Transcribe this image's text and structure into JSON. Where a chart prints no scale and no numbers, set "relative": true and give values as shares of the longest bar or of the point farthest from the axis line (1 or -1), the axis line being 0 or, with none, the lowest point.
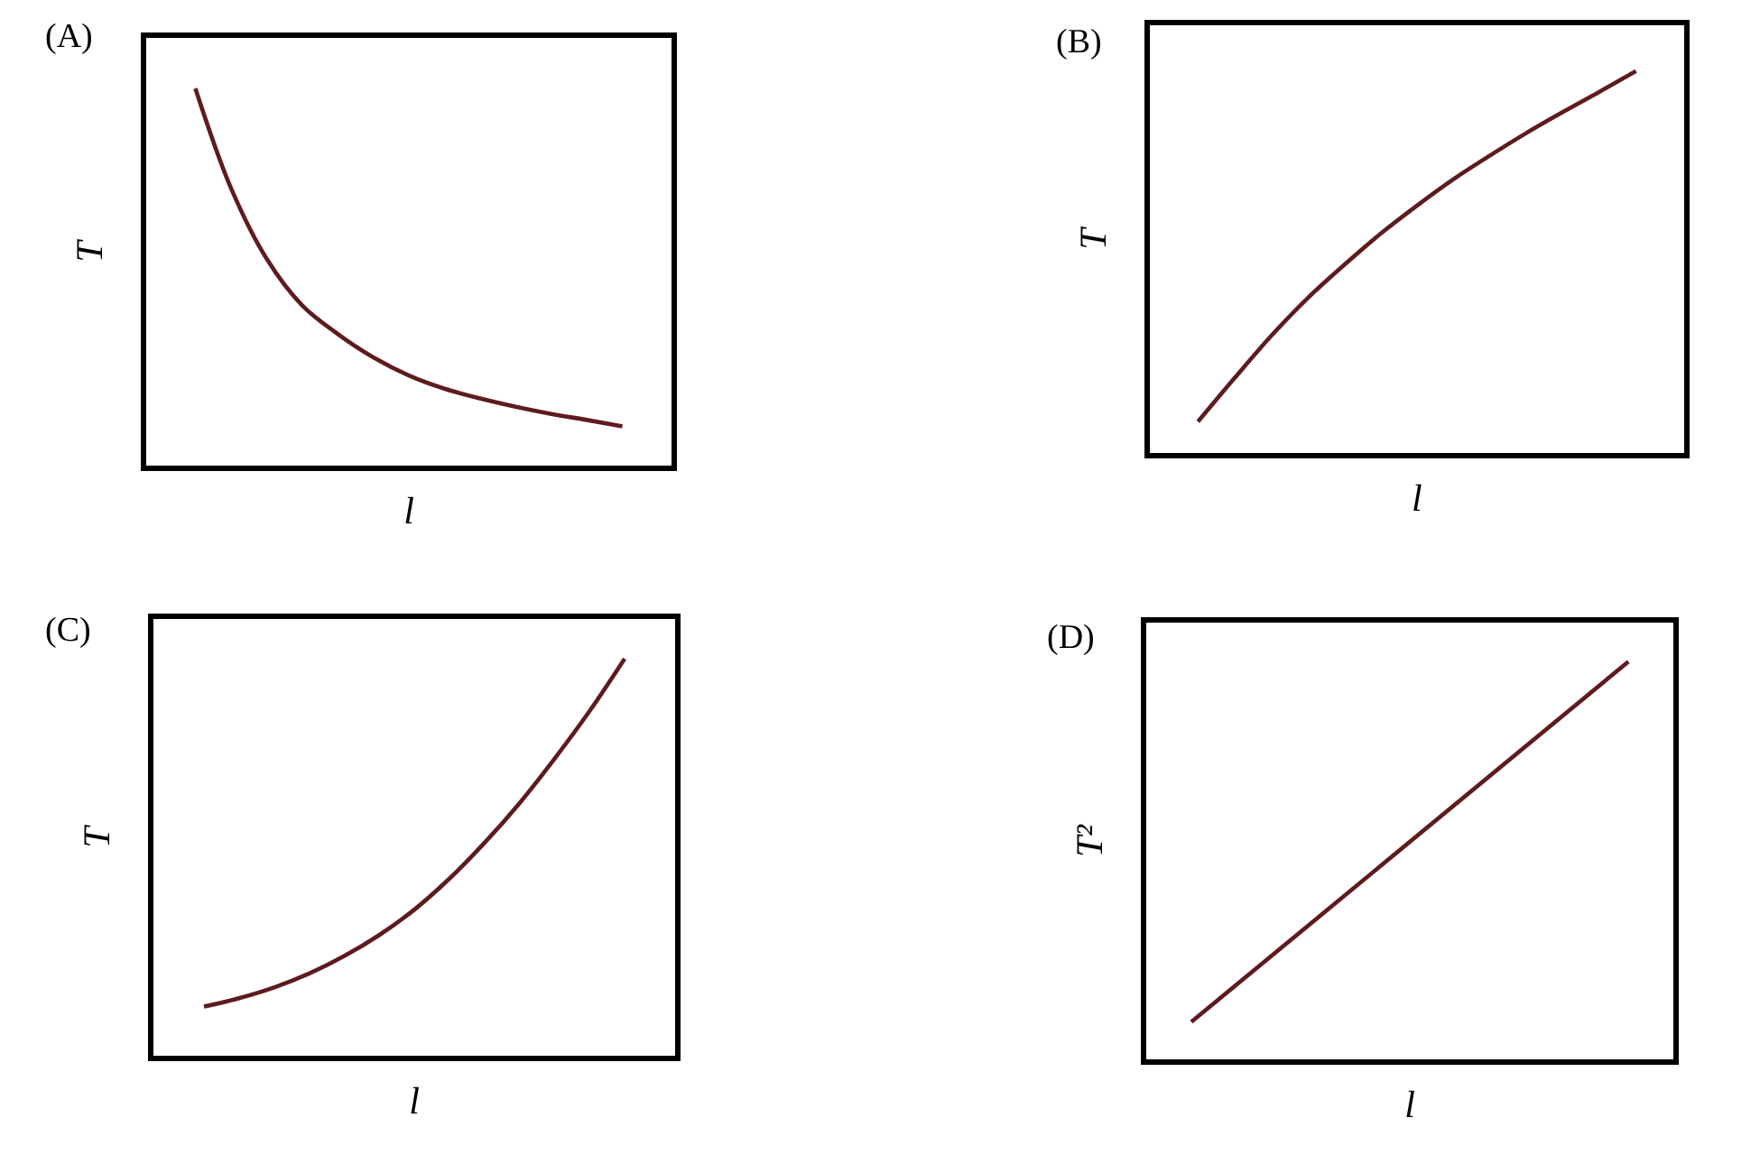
{
  "chart_data": [
    {
      "type": "line",
      "title": "(A)",
      "xlabel": "l",
      "ylabel": "T",
      "relative": true,
      "tick_labels": false,
      "categories": [
        null,
        null,
        null,
        null,
        null,
        null,
        null,
        null,
        null,
        null,
        null,
        null,
        null
      ],
      "series": [
        {
          "color": "#5e1b1e",
          "values": [
            1.0,
            0.736,
            0.549,
            0.425,
            0.349,
            0.287,
            0.239,
            0.204,
            0.178,
            0.156,
            0.137,
            0.121,
            0.104
          ]
        }
      ]
    },
    {
      "type": "line",
      "title": "(B)",
      "xlabel": "l",
      "ylabel": "T",
      "relative": true,
      "tick_labels": false,
      "categories": [
        null,
        null,
        null,
        null,
        null,
        null,
        null,
        null,
        null,
        null,
        null,
        null,
        null
      ],
      "series": [
        {
          "color": "#5e1b1e",
          "values": [
            0.082,
            0.196,
            0.306,
            0.405,
            0.492,
            0.574,
            0.648,
            0.717,
            0.779,
            0.838,
            0.893,
            0.946,
            1.0
          ]
        }
      ]
    },
    {
      "type": "line",
      "title": "(C)",
      "xlabel": "l",
      "ylabel": "T",
      "relative": true,
      "tick_labels": false,
      "categories": [
        null,
        null,
        null,
        null,
        null,
        null,
        null,
        null,
        null,
        null,
        null,
        null,
        null
      ],
      "series": [
        {
          "color": "#5e1b1e",
          "values": [
            0.124,
            0.145,
            0.172,
            0.207,
            0.251,
            0.304,
            0.368,
            0.446,
            0.536,
            0.636,
            0.748,
            0.868,
            1.0
          ]
        }
      ]
    },
    {
      "type": "line",
      "title": "(D)",
      "xlabel": "l",
      "ylabel": "T²",
      "relative": true,
      "tick_labels": false,
      "categories": [
        null,
        null
      ],
      "series": [
        {
          "color": "#5e1b1e",
          "values": [
            0.094,
            1.0
          ]
        }
      ]
    }
  ]
}
